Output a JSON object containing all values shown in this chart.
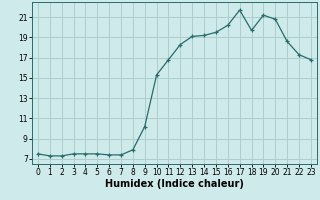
{
  "x": [
    0,
    1,
    2,
    3,
    4,
    5,
    6,
    7,
    8,
    9,
    10,
    11,
    12,
    13,
    14,
    15,
    16,
    17,
    18,
    19,
    20,
    21,
    22,
    23
  ],
  "y": [
    7.5,
    7.3,
    7.3,
    7.5,
    7.5,
    7.5,
    7.4,
    7.4,
    7.9,
    10.2,
    15.3,
    16.8,
    18.3,
    19.1,
    19.2,
    19.5,
    20.2,
    21.7,
    19.7,
    21.2,
    20.8,
    18.6,
    17.3,
    16.8
  ],
  "xlabel": "Humidex (Indice chaleur)",
  "ylabel": "",
  "title": "",
  "bg_color": "#ceeaea",
  "grid_color": "#aecece",
  "line_color": "#2a6b6b",
  "marker_color": "#2a6b6b",
  "xlim": [
    -0.5,
    23.5
  ],
  "ylim": [
    6.5,
    22.5
  ],
  "yticks": [
    7,
    9,
    11,
    13,
    15,
    17,
    19,
    21
  ],
  "xticks": [
    0,
    1,
    2,
    3,
    4,
    5,
    6,
    7,
    8,
    9,
    10,
    11,
    12,
    13,
    14,
    15,
    16,
    17,
    18,
    19,
    20,
    21,
    22,
    23
  ],
  "tick_fontsize": 5.5,
  "xlabel_fontsize": 7
}
